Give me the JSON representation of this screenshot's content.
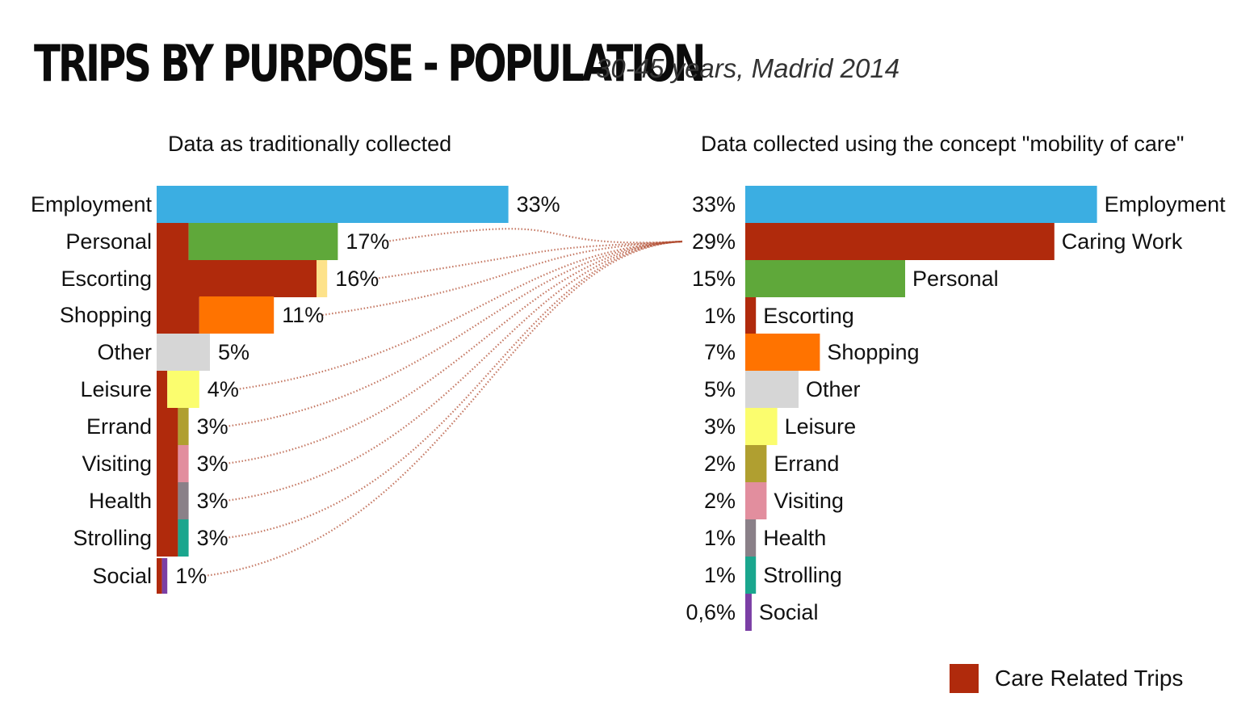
{
  "title": "TRIPS BY PURPOSE - POPULATION",
  "subtitle": "30-45 years, Madrid 2014",
  "legend": {
    "label": "Care Related Trips",
    "color": "#b02a0c"
  },
  "colors": {
    "care": "#b02a0c",
    "Employment": "#3baee2",
    "Personal": "#5fa83a",
    "Escorting": "#fde28a",
    "Shopping": "#ff7300",
    "Other": "#d6d6d6",
    "Leisure": "#fbfd6e",
    "Errand": "#b09f30",
    "Visiting": "#e28e9e",
    "Health": "#8a8088",
    "Strolling": "#1aa68e",
    "Social": "#7b3fa5"
  },
  "chart_data": [
    {
      "type": "bar",
      "title": "Data as traditionally collected",
      "orientation": "horizontal",
      "unit": "%",
      "categories": [
        "Employment",
        "Personal",
        "Escorting",
        "Shopping",
        "Other",
        "Leisure",
        "Errand",
        "Visiting",
        "Health",
        "Strolling",
        "Social"
      ],
      "value_labels": [
        "33%",
        "17%",
        "16%",
        "11%",
        "5%",
        "4%",
        "3%",
        "3%",
        "3%",
        "3%",
        "1%"
      ],
      "values": [
        33,
        17,
        16,
        11,
        5,
        4,
        3,
        3,
        3,
        3,
        1
      ],
      "care_related_values": [
        0,
        3,
        15,
        4,
        0,
        1,
        2,
        2,
        2,
        2,
        0.5
      ]
    },
    {
      "type": "bar",
      "title": "Data collected using the concept \"mobility of care\"",
      "orientation": "horizontal",
      "unit": "%",
      "categories": [
        "Employment",
        "Caring Work",
        "Personal",
        "Escorting",
        "Shopping",
        "Other",
        "Leisure",
        "Errand",
        "Visiting",
        "Health",
        "Strolling",
        "Social"
      ],
      "value_labels": [
        "33%",
        "29%",
        "15%",
        "1%",
        "7%",
        "5%",
        "3%",
        "2%",
        "2%",
        "1%",
        "1%",
        "0,6%"
      ],
      "values": [
        33,
        29,
        15,
        1,
        7,
        5,
        3,
        2,
        2,
        1,
        1,
        0.6
      ]
    }
  ]
}
